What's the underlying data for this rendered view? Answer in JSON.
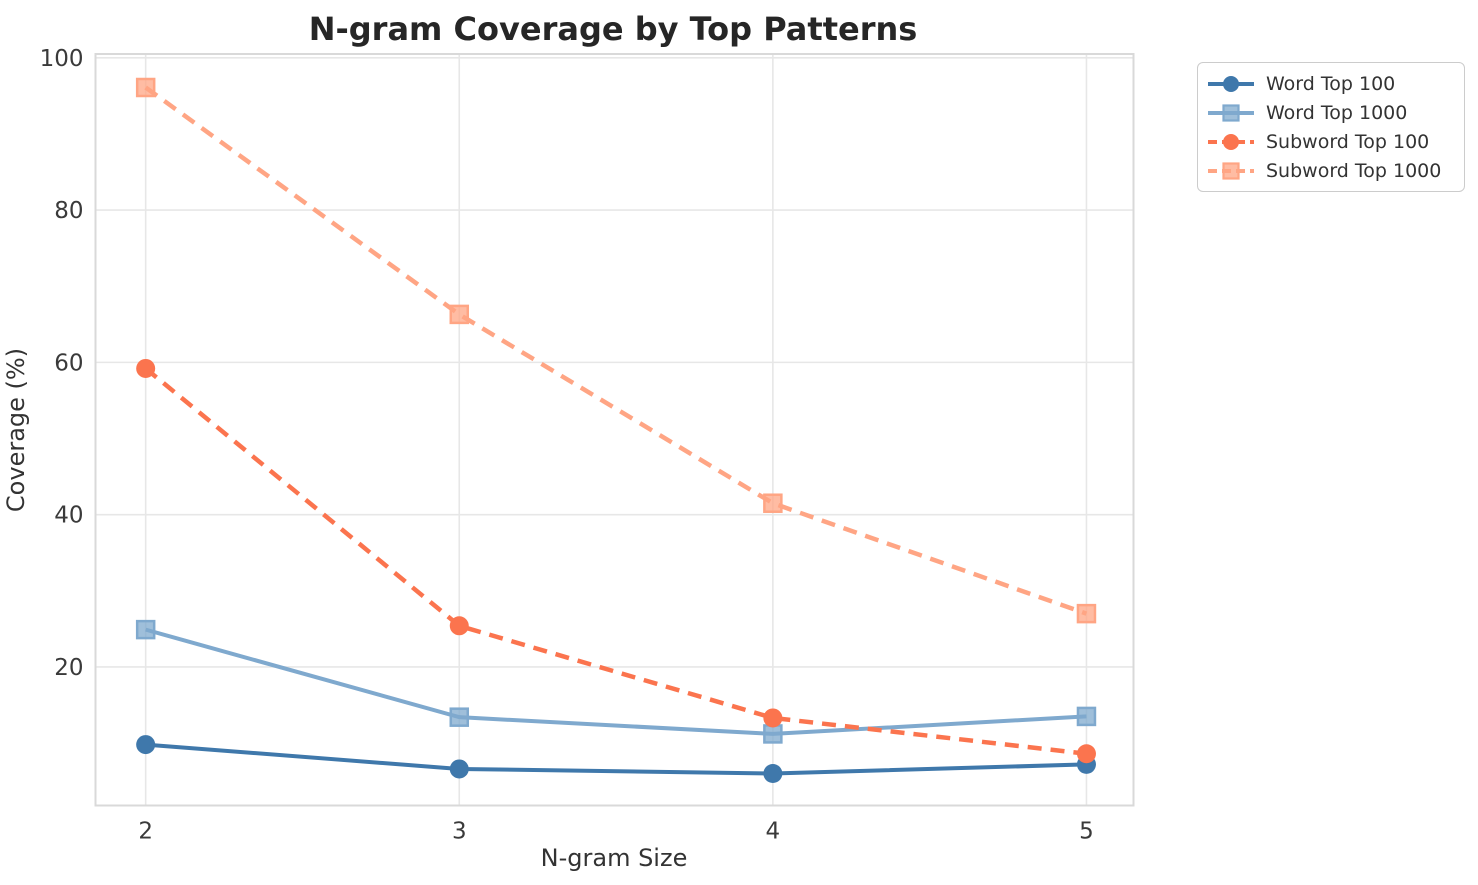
{
  "chart_data": {
    "type": "line",
    "title": "N-gram Coverage by Top Patterns",
    "xlabel": "N-gram Size",
    "ylabel": "Coverage (%)",
    "x": [
      2,
      3,
      4,
      5
    ],
    "xticks": [
      2,
      3,
      4,
      5
    ],
    "yticks": [
      20,
      40,
      60,
      80,
      100
    ],
    "xlim": [
      1.84,
      5.15
    ],
    "ylim": [
      1.8,
      100.5
    ],
    "grid": true,
    "legend_position": "outside upper right",
    "series": [
      {
        "name": "Word Top 100",
        "values": [
          9.8,
          6.6,
          6.0,
          7.2
        ],
        "color": "#3f78ab",
        "marker": "circle",
        "linestyle": "solid"
      },
      {
        "name": "Word Top 1000",
        "values": [
          24.9,
          13.4,
          11.2,
          13.5
        ],
        "color": "#7fa9ce",
        "marker": "square",
        "linestyle": "solid"
      },
      {
        "name": "Subword Top 100",
        "values": [
          59.2,
          25.4,
          13.3,
          8.6
        ],
        "color": "#fb744e",
        "marker": "circle",
        "linestyle": "dashed"
      },
      {
        "name": "Subword Top 1000",
        "values": [
          96.1,
          66.3,
          41.5,
          27.0
        ],
        "color": "#ffa584",
        "marker": "square",
        "linestyle": "dashed"
      }
    ]
  },
  "colors": {
    "background": "#ffffff",
    "grid": "#e7e7e7",
    "spine": "#d9d9d9",
    "tick_text": "#3a3a3a",
    "title_text": "#262626",
    "legend_border": "#cccccc"
  }
}
